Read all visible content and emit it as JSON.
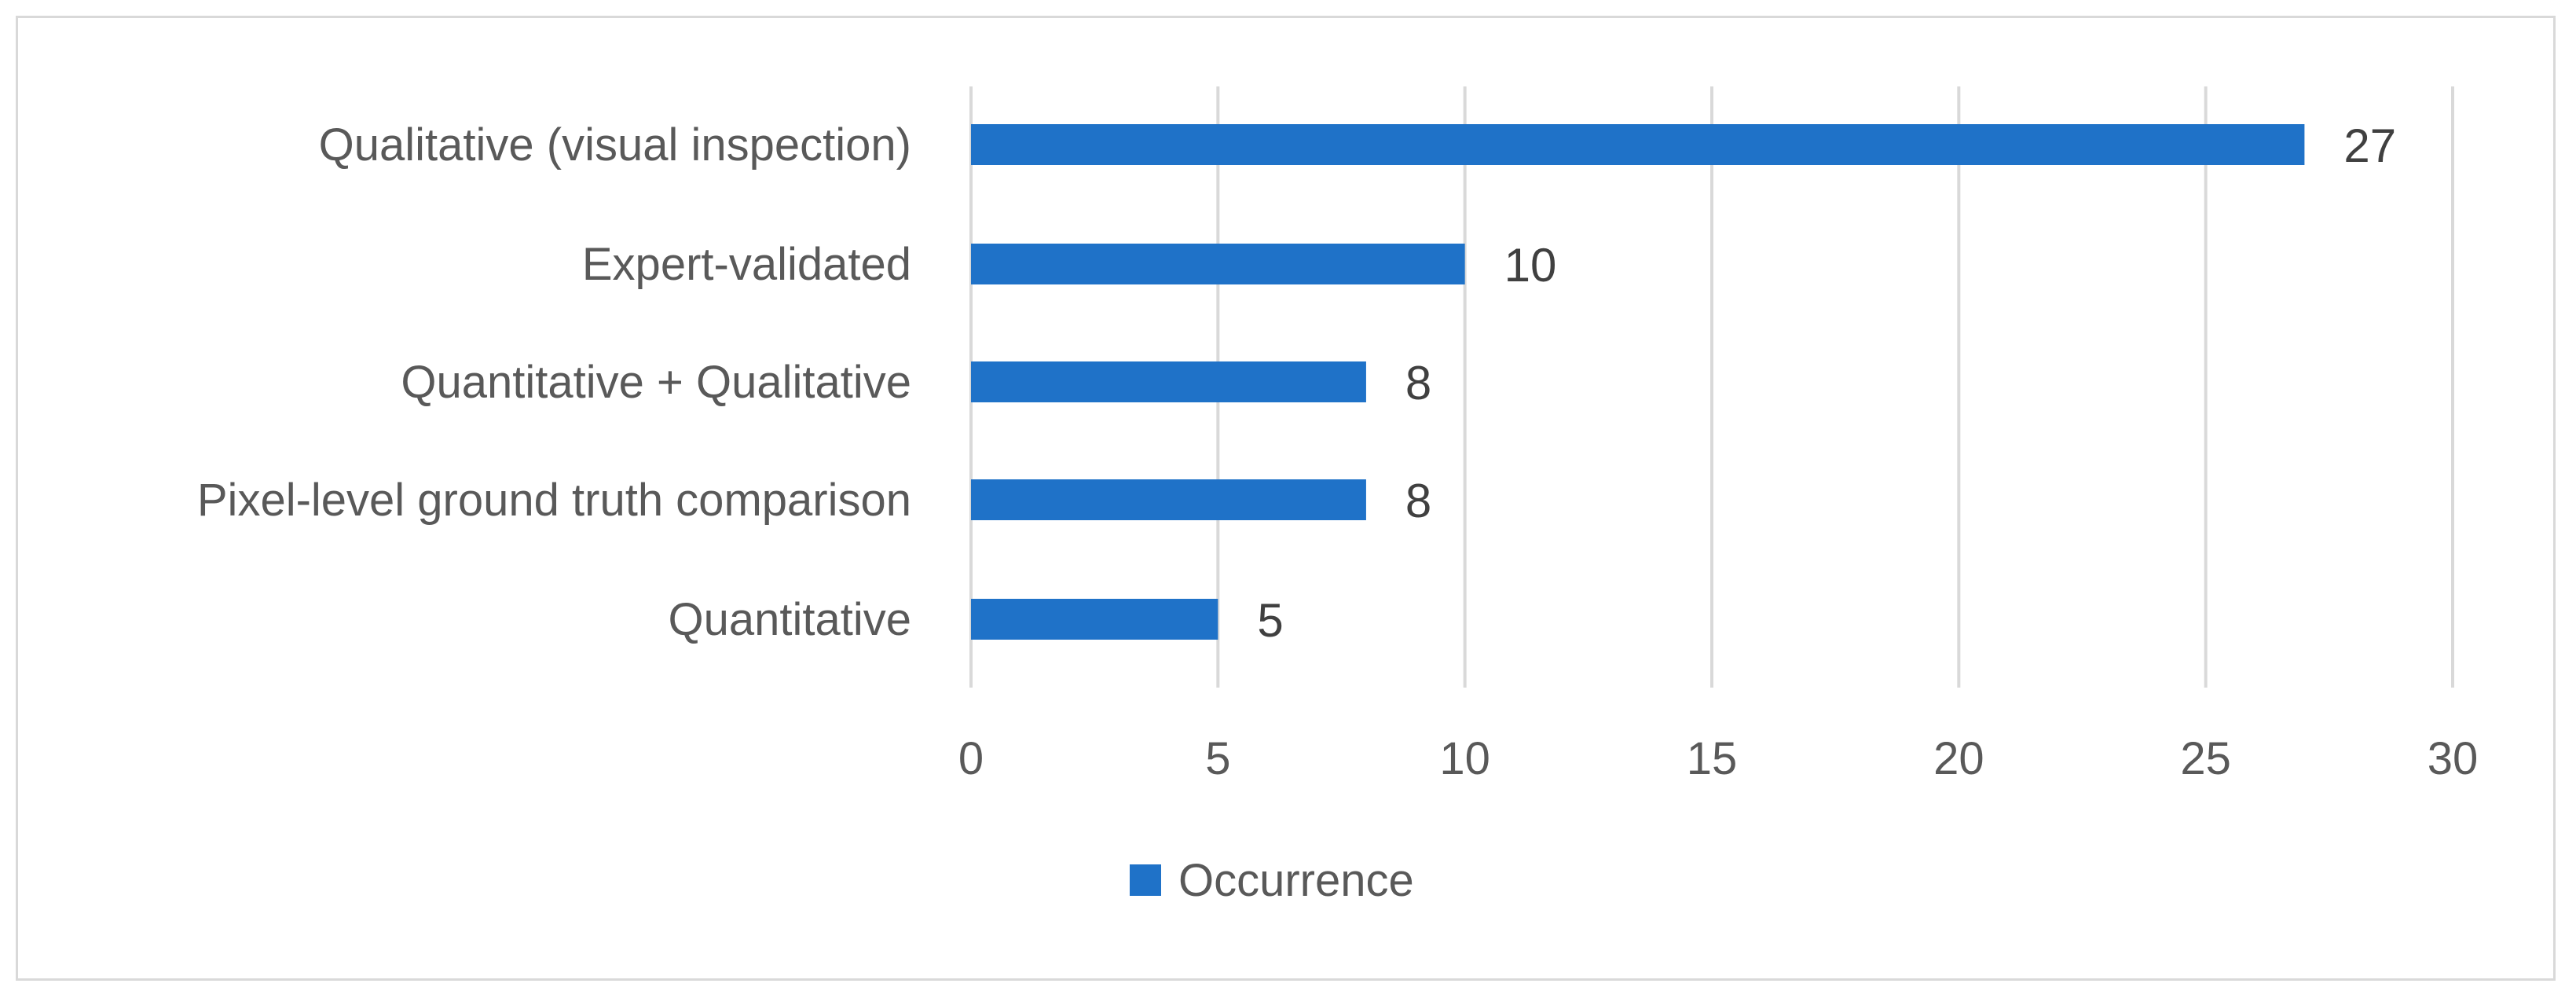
{
  "chart_data": {
    "type": "bar",
    "orientation": "horizontal",
    "categories": [
      "Qualitative (visual inspection)",
      "Expert-validated",
      "Quantitative + Qualitative",
      "Pixel-level ground truth comparison",
      "Quantitative"
    ],
    "series": [
      {
        "name": "Occurrence",
        "values": [
          27,
          10,
          8,
          8,
          5
        ],
        "color": "#1f72c8"
      }
    ],
    "xlim": [
      0,
      30
    ],
    "xticks": [
      "0",
      "5",
      "10",
      "15",
      "20",
      "25",
      "30"
    ],
    "title": "",
    "xlabel": "",
    "ylabel": "",
    "grid": "vertical",
    "legend_position": "bottom",
    "data_labels": true
  }
}
